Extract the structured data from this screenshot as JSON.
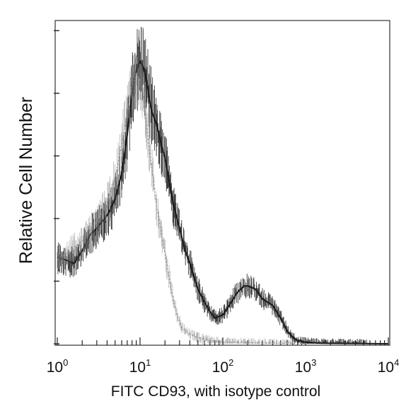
{
  "chart_data": {
    "type": "line",
    "title": "",
    "xlabel": "FITC CD93, with isotype control",
    "ylabel": "Relative Cell Number",
    "x_scale": "log",
    "xlim": [
      1,
      10000
    ],
    "ylim": [
      0,
      100
    ],
    "grid": false,
    "legend": "none",
    "x_ticks": [
      {
        "base": "10",
        "exp": "0",
        "value": 1
      },
      {
        "base": "10",
        "exp": "1",
        "value": 10
      },
      {
        "base": "10",
        "exp": "2",
        "value": 100
      },
      {
        "base": "10",
        "exp": "3",
        "value": 1000
      },
      {
        "base": "10",
        "exp": "4",
        "value": 10000
      }
    ],
    "series": [
      {
        "color": "#1a1a1a",
        "style": "dense-noisy",
        "x": [
          1,
          1.3,
          1.6,
          2,
          2.5,
          3,
          4,
          5,
          6,
          7,
          8,
          9,
          10,
          11,
          12,
          13,
          14,
          16,
          18,
          20,
          22,
          25,
          30,
          35,
          40,
          50,
          60,
          70,
          80,
          100,
          120,
          150,
          180,
          200,
          250,
          300,
          400,
          500,
          600,
          700,
          800,
          1000,
          1500,
          3000,
          10000
        ],
        "values": [
          27,
          26,
          25,
          29,
          34,
          36,
          40,
          45,
          53,
          65,
          78,
          85,
          88,
          86,
          82,
          76,
          72,
          68,
          62,
          58,
          52,
          44,
          36,
          29,
          25,
          17,
          13,
          10,
          8,
          9,
          12,
          16,
          18,
          18,
          17,
          14,
          12,
          8,
          4,
          2,
          1,
          0.5,
          0.2,
          0.1,
          0
        ]
      },
      {
        "color": "#8a8a8a",
        "style": "dotted-noisy",
        "x": [
          1,
          2,
          3,
          4,
          5,
          6,
          7,
          8,
          9,
          10,
          11,
          12,
          13,
          14,
          15,
          16,
          18,
          20,
          22,
          25,
          28,
          32,
          40,
          50,
          70,
          100,
          150,
          200,
          300,
          500,
          1000
        ],
        "values": [
          26,
          32,
          38,
          44,
          52,
          62,
          72,
          80,
          84,
          82,
          77,
          68,
          60,
          54,
          48,
          42,
          35,
          28,
          22,
          14,
          9,
          5,
          3,
          2,
          1,
          0.5,
          0.5,
          0.3,
          0.2,
          0.1,
          0
        ]
      }
    ]
  }
}
